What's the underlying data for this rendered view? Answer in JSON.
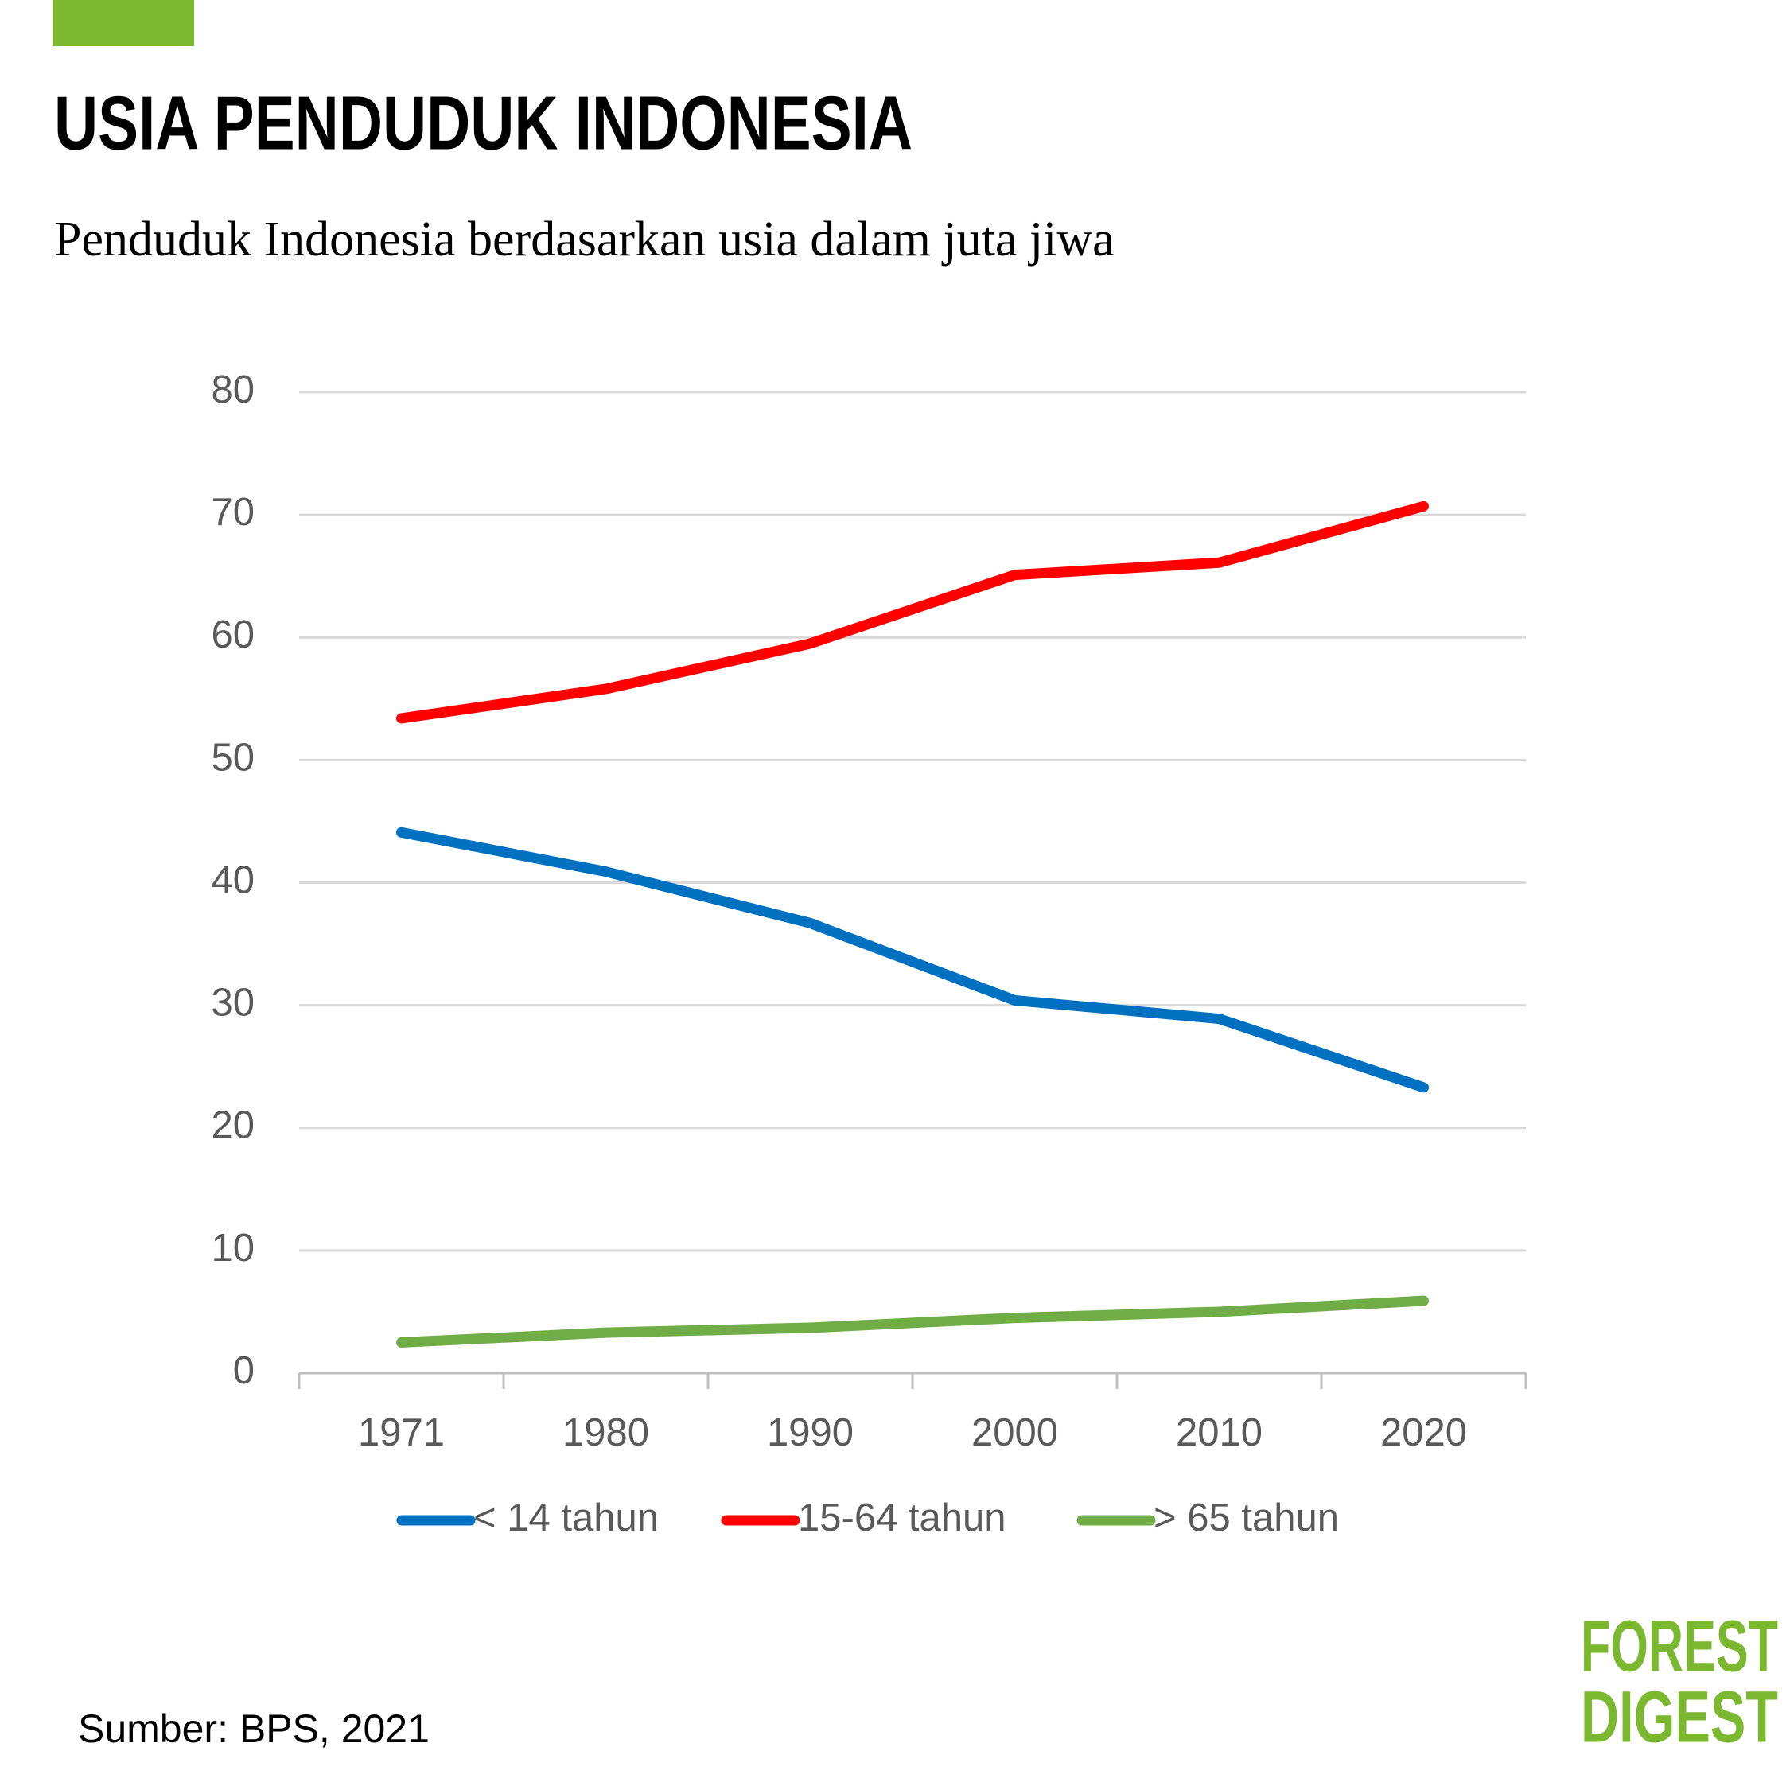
{
  "chart_data": {
    "type": "line",
    "title": "USIA PENDUDUK INDONESIA",
    "subtitle": "Penduduk Indonesia berdasarkan usia dalam juta jiwa",
    "categories": [
      "1971",
      "1980",
      "1990",
      "2000",
      "2010",
      "2020"
    ],
    "series": [
      {
        "name": "< 14 tahun",
        "color": "#0070c0",
        "values": [
          44.1,
          40.9,
          36.7,
          30.4,
          28.9,
          23.3
        ]
      },
      {
        "name": "15-64 tahun",
        "color": "#ff0000",
        "values": [
          53.4,
          55.8,
          59.5,
          65.1,
          66.1,
          70.7
        ]
      },
      {
        "name": "> 65 tahun",
        "color": "#70ad47",
        "values": [
          2.5,
          3.3,
          3.7,
          4.5,
          5.0,
          5.9
        ]
      }
    ],
    "ylim": [
      0,
      80
    ],
    "yticks": [
      0,
      10,
      20,
      30,
      40,
      50,
      60,
      70,
      80
    ],
    "grid": true,
    "legend": "bottom",
    "source": "Sumber: BPS, 2021",
    "logo": [
      "FOREST",
      "DIGEST"
    ]
  }
}
